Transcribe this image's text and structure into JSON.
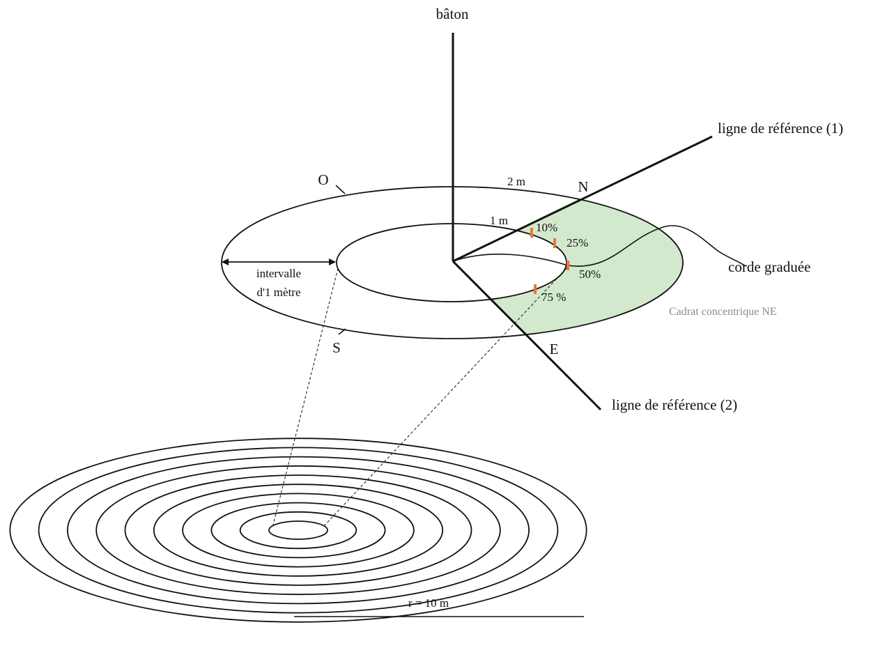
{
  "labels": {
    "stick": "bâton",
    "ref_line_1": "ligne de référence (1)",
    "ref_line_2": "ligne de référence (2)",
    "north": "N",
    "west": "O",
    "south": "S",
    "east": "E",
    "outer_radius": "2 m",
    "inner_radius": "1 m",
    "interval_line1": "intervalle",
    "interval_line2": "d'1 mètre",
    "graduated_rope": "corde graduée",
    "quadrat_caption": "Cadrat concentrique NE",
    "scale_bar": "r = 10 m"
  },
  "rope_marks": [
    "10%",
    "25%",
    "50%",
    "75 %"
  ],
  "concentric_rings_count": 10,
  "colors": {
    "line": "#111111",
    "quadrat_fill": "#d3e9cd",
    "rope_mark": "#e8763b",
    "caption": "#8a8a8a"
  }
}
